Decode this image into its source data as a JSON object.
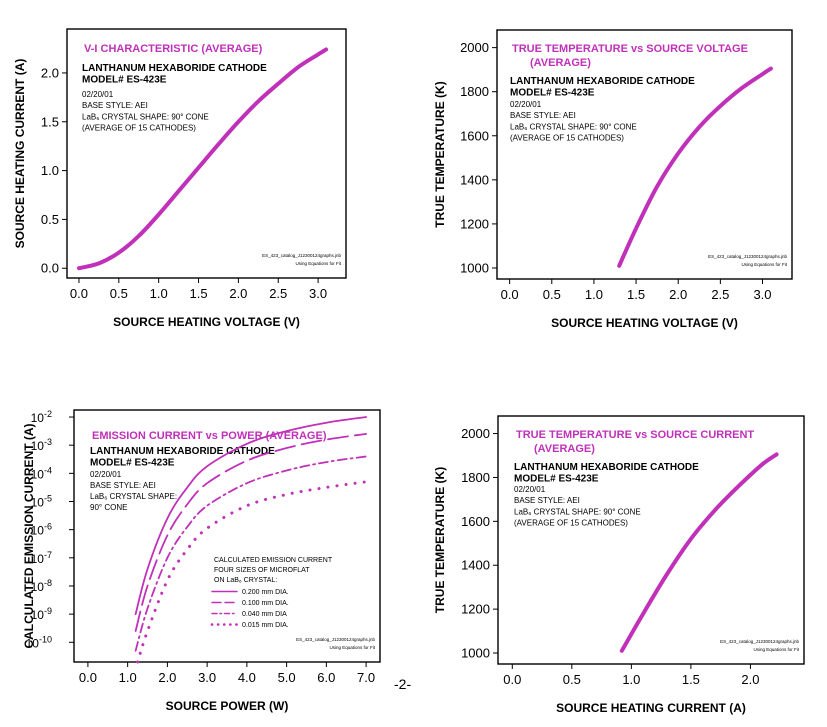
{
  "page": {
    "page_number": "-2-"
  },
  "chart_data": [
    {
      "id": "vi",
      "type": "line",
      "title": "V-I CHARACTERISTIC  (AVERAGE)",
      "subtitle_lines": [
        "LANTHANUM HEXABORIDE CATHODE",
        "MODEL# ES-423E"
      ],
      "info_lines": [
        "02/20/01",
        "BASE STYLE: AEI",
        "LaB₆ CRYSTAL SHAPE:  90° CONE",
        "(AVERAGE OF 15 CATHODES)"
      ],
      "footnote_lines": [
        "ES_423_catalog_J12300124graphs.jnb",
        "Using Equations for Fit"
      ],
      "xlabel": "SOURCE HEATING VOLTAGE (V)",
      "ylabel": "SOURCE HEATING CURRENT (A)",
      "xlim": [
        -0.15,
        3.35
      ],
      "ylim": [
        -0.1,
        2.45
      ],
      "xticks": [
        0,
        0.5,
        1,
        1.5,
        2,
        2.5,
        3
      ],
      "xtick_labels": [
        "0.0",
        "0.5",
        "1.0",
        "1.5",
        "2.0",
        "2.5",
        "3.0"
      ],
      "yticks": [
        0,
        0.5,
        1,
        1.5,
        2
      ],
      "ytick_labels": [
        "0.0",
        "0.5",
        "1.0",
        "1.5",
        "2.0"
      ],
      "yscale": "linear",
      "grid": false,
      "series": [
        {
          "color": "#c030b8",
          "style": "solid",
          "x": [
            0,
            0.25,
            0.5,
            0.75,
            1.0,
            1.25,
            1.5,
            1.75,
            2.0,
            2.25,
            2.5,
            2.75,
            3.0,
            3.1
          ],
          "y": [
            0,
            0.05,
            0.16,
            0.33,
            0.55,
            0.79,
            1.03,
            1.27,
            1.5,
            1.71,
            1.89,
            2.06,
            2.19,
            2.24
          ]
        }
      ]
    },
    {
      "id": "tv",
      "type": "line",
      "title": "TRUE TEMPERATURE vs SOURCE VOLTAGE",
      "title_line2": "(AVERAGE)",
      "subtitle_lines": [
        "LANTHANUM HEXABORIDE CATHODE",
        "MODEL# ES-423E"
      ],
      "info_lines": [
        "02/20/01",
        "BASE STYLE: AEI",
        "LaB₆ CRYSTAL SHAPE:  90° CONE",
        "(AVERAGE OF 15 CATHODES)"
      ],
      "footnote_lines": [
        "ES_423_catalog_J12300124graphs.jnb",
        "Using Equations for Fit"
      ],
      "xlabel": "SOURCE HEATING VOLTAGE (V)",
      "ylabel": "TRUE TEMPERATURE (K)",
      "xlim": [
        -0.15,
        3.35
      ],
      "ylim": [
        950,
        2080
      ],
      "xticks": [
        0,
        0.5,
        1,
        1.5,
        2,
        2.5,
        3
      ],
      "xtick_labels": [
        "0.0",
        "0.5",
        "1.0",
        "1.5",
        "2.0",
        "2.5",
        "3.0"
      ],
      "yticks": [
        1000,
        1200,
        1400,
        1600,
        1800,
        2000
      ],
      "ytick_labels": [
        "1000",
        "1200",
        "1400",
        "1600",
        "1800",
        "2000"
      ],
      "yscale": "linear",
      "grid": false,
      "series": [
        {
          "color": "#c030b8",
          "style": "solid",
          "x": [
            1.3,
            1.5,
            1.75,
            2.0,
            2.25,
            2.5,
            2.75,
            3.0,
            3.1
          ],
          "y": [
            1010,
            1180,
            1370,
            1520,
            1640,
            1735,
            1815,
            1880,
            1905
          ]
        }
      ]
    },
    {
      "id": "ep",
      "type": "line",
      "title": "EMISSION CURRENT vs POWER (AVERAGE)",
      "subtitle_lines": [
        "LANTHANUM HEXABORIDE CATHODE",
        "MODEL# ES-423E"
      ],
      "info_lines": [
        "02/20/01",
        "BASE STYLE: AEI",
        "LaB₆ CRYSTAL SHAPE:",
        "  90° CONE"
      ],
      "legend_header": [
        "CALCULATED EMISSION CURRENT",
        "FOUR SIZES OF MICROFLAT",
        "ON LaB₆ CRYSTAL:"
      ],
      "footnote_lines": [
        "ES_423_catalog_J12300124graphs.jnb",
        "Using Equations for Fit"
      ],
      "xlabel": "SOURCE POWER (W)",
      "ylabel": "CALCULATED EMISSION CURRENT (A)",
      "xlim": [
        -0.35,
        7.35
      ],
      "ylim_exp": [
        -10.7,
        -1.75
      ],
      "xticks": [
        0,
        1,
        2,
        3,
        4,
        5,
        6,
        7
      ],
      "xtick_labels": [
        "0.0",
        "1.0",
        "2.0",
        "3.0",
        "4.0",
        "5.0",
        "6.0",
        "7.0"
      ],
      "yticks_exp": [
        -10,
        -9,
        -8,
        -7,
        -6,
        -5,
        -4,
        -3,
        -2
      ],
      "ytick_base": "10",
      "ytick_exponents": [
        "-10",
        "-9",
        "-8",
        "-7",
        "-6",
        "-5",
        "-4",
        "-3",
        "-2"
      ],
      "yscale": "log",
      "grid": false,
      "legend_position": "lower-right",
      "series": [
        {
          "name": "0.200 mm DIA.",
          "color": "#c030b8",
          "style": "solid",
          "x": [
            1.2,
            1.5,
            2.0,
            2.5,
            3.0,
            4.0,
            5.0,
            6.0,
            7.0
          ],
          "log10_y": [
            -9.0,
            -7.4,
            -5.6,
            -4.5,
            -3.75,
            -2.95,
            -2.5,
            -2.2,
            -2.0
          ]
        },
        {
          "name": "0.100 mm DIA.",
          "color": "#c030b8",
          "style": "longdash",
          "x": [
            1.2,
            1.5,
            2.0,
            2.5,
            3.0,
            4.0,
            5.0,
            6.0,
            7.0
          ],
          "log10_y": [
            -9.6,
            -8.0,
            -6.2,
            -5.1,
            -4.35,
            -3.55,
            -3.1,
            -2.8,
            -2.6
          ]
        },
        {
          "name": "0.040 mm DIA",
          "color": "#c030b8",
          "style": "dashdot",
          "x": [
            1.2,
            1.5,
            2.0,
            2.5,
            3.0,
            4.0,
            5.0,
            6.0,
            7.0
          ],
          "log10_y": [
            -10.3,
            -8.8,
            -7.0,
            -5.9,
            -5.15,
            -4.35,
            -3.9,
            -3.6,
            -3.4
          ]
        },
        {
          "name": "0.015 mm DIA.",
          "color": "#c030b8",
          "style": "dotted",
          "x": [
            1.25,
            1.5,
            2.0,
            2.5,
            3.0,
            4.0,
            5.0,
            6.0,
            7.0
          ],
          "log10_y": [
            -10.7,
            -9.6,
            -7.8,
            -6.7,
            -5.95,
            -5.15,
            -4.75,
            -4.5,
            -4.3
          ]
        }
      ]
    },
    {
      "id": "tc",
      "type": "line",
      "title": "TRUE TEMPERATURE vs SOURCE CURRENT",
      "title_line2": "(AVERAGE)",
      "subtitle_lines": [
        "LANTHANUM HEXABORIDE CATHODE",
        "MODEL# ES-423E"
      ],
      "info_lines": [
        "02/20/01",
        "BASE STYLE: AEI",
        "LaB₆ CRYSTAL SHAPE:  90° CONE",
        "(AVERAGE OF 15 CATHODES)"
      ],
      "footnote_lines": [
        "ES_423_catalog_J12300124graphs.jnb",
        "Using Equations for Fit"
      ],
      "xlabel": "SOURCE HEATING CURRENT (A)",
      "ylabel": "TRUE TEMPERATURE (K)",
      "xlim": [
        -0.12,
        2.45
      ],
      "ylim": [
        950,
        2080
      ],
      "xticks": [
        0,
        0.5,
        1,
        1.5,
        2
      ],
      "xtick_labels": [
        "0.0",
        "0.5",
        "1.0",
        "1.5",
        "2.0"
      ],
      "yticks": [
        1000,
        1200,
        1400,
        1600,
        1800,
        2000
      ],
      "ytick_labels": [
        "1000",
        "1200",
        "1400",
        "1600",
        "1800",
        "2000"
      ],
      "yscale": "linear",
      "grid": false,
      "series": [
        {
          "color": "#c030b8",
          "style": "solid",
          "x": [
            0.92,
            1.1,
            1.3,
            1.5,
            1.7,
            1.9,
            2.1,
            2.22
          ],
          "y": [
            1010,
            1180,
            1360,
            1520,
            1650,
            1760,
            1860,
            1905
          ]
        }
      ]
    }
  ]
}
